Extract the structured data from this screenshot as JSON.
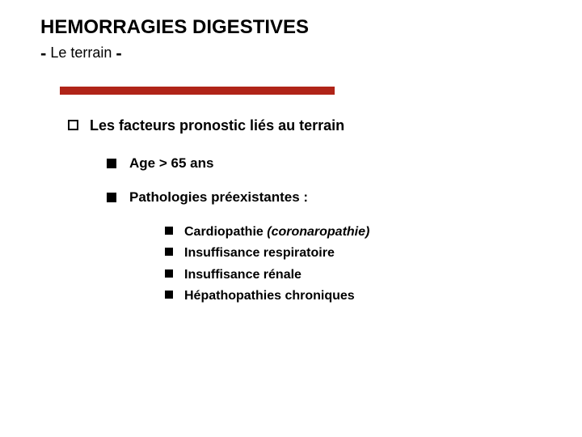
{
  "title": "HEMORRAGIES DIGESTIVES",
  "subtitle_core": "Le terrain",
  "subtitle_dash": "-",
  "redbar_color": "#b02418",
  "level1_text": "Les facteurs  pronostic liés au terrain",
  "level2": [
    {
      "text": "Age > 65 ans"
    },
    {
      "text": "Pathologies préexistantes :"
    }
  ],
  "level3": [
    {
      "bold": "Cardiopathie ",
      "italic": "(coronaropathie)"
    },
    {
      "bold": "Insuffisance respiratoire",
      "italic": ""
    },
    {
      "bold": "Insuffisance rénale",
      "italic": ""
    },
    {
      "bold": "Hépathopathies  chroniques",
      "italic": ""
    }
  ]
}
